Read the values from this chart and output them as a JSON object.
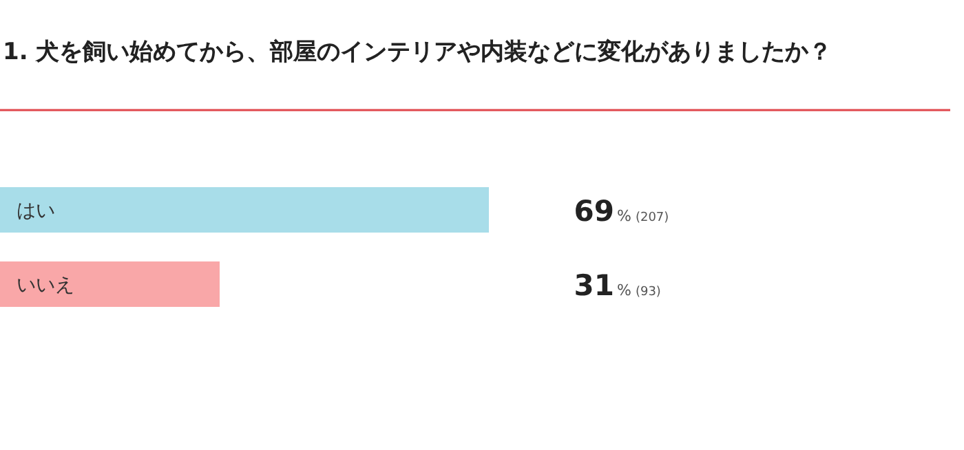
{
  "chart_data": {
    "type": "bar",
    "orientation": "horizontal",
    "title": "1. 犬を飼い始めてから、部屋のインテリアや内装などに変化がありましたか？",
    "categories": [
      "はい",
      "いいえ"
    ],
    "values": [
      69,
      31
    ],
    "colors": [
      "#a8dde9",
      "#f9a7a8"
    ],
    "value_labels": [
      "69% (207)",
      "31% (93)"
    ]
  }
}
